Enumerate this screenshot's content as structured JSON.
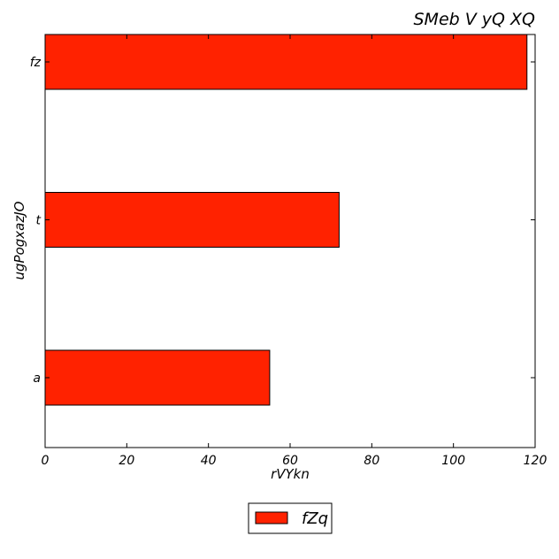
{
  "chart_data": {
    "type": "bar",
    "orientation": "horizontal",
    "title": "SMeb V yQ XQ",
    "xlabel": "rVYkn",
    "ylabel": "ugPogxazJO",
    "categories": [
      "a",
      "t",
      "fz"
    ],
    "series": [
      {
        "name": "fZq",
        "values": [
          55,
          72,
          118
        ],
        "color": "#ff2200"
      }
    ],
    "xlim": [
      0,
      120
    ],
    "xticks": [
      0,
      20,
      40,
      60,
      80,
      100,
      120
    ],
    "grid": false,
    "legend_position": "bottom-center"
  }
}
